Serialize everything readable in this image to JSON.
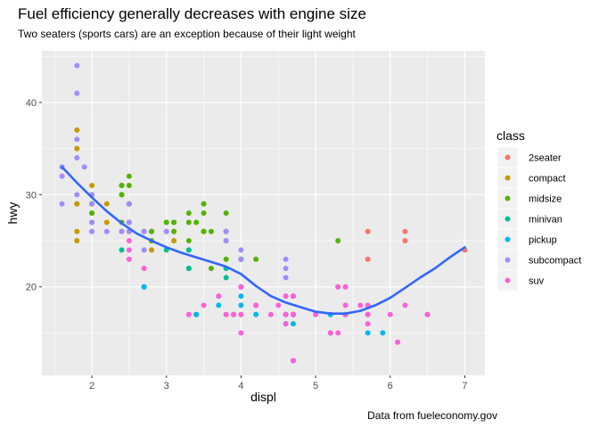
{
  "chart_data": {
    "type": "scatter",
    "title": "Fuel efficiency generally decreases with engine size",
    "subtitle": "Two seaters (sports cars) are an exception because of their light weight",
    "caption": "Data from fueleconomy.gov",
    "xlabel": "displ",
    "ylabel": "hwy",
    "xlim": [
      1.33,
      7.27
    ],
    "ylim": [
      10.4,
      45.6
    ],
    "xticks": [
      2,
      3,
      4,
      5,
      6,
      7
    ],
    "yticks": [
      20,
      30,
      40
    ],
    "grid": true,
    "legend": {
      "title": "class",
      "placement": "right",
      "entries": [
        "2seater",
        "compact",
        "midsize",
        "minivan",
        "pickup",
        "subcompact",
        "suv"
      ]
    },
    "colors": {
      "2seater": "#F8766D",
      "compact": "#C49A00",
      "midsize": "#53B400",
      "minivan": "#00C094",
      "pickup": "#00B6EB",
      "subcompact": "#A58AFF",
      "suv": "#FB61D7",
      "smooth": "#3366FF",
      "panel": "#EBEBEB",
      "grid": "#FFFFFF"
    },
    "series": [
      {
        "name": "2seater",
        "points": [
          [
            5.7,
            26
          ],
          [
            5.7,
            23
          ],
          [
            6.2,
            26
          ],
          [
            6.2,
            25
          ],
          [
            7.0,
            24
          ]
        ]
      },
      {
        "name": "compact",
        "points": [
          [
            1.8,
            29
          ],
          [
            1.8,
            29
          ],
          [
            2.0,
            31
          ],
          [
            2.0,
            30
          ],
          [
            2.8,
            26
          ],
          [
            2.8,
            26
          ],
          [
            3.1,
            27
          ],
          [
            1.8,
            26
          ],
          [
            1.8,
            25
          ],
          [
            2.0,
            28
          ],
          [
            2.0,
            29
          ],
          [
            2.8,
            25
          ],
          [
            3.1,
            25
          ],
          [
            2.2,
            27
          ],
          [
            2.2,
            29
          ],
          [
            2.4,
            31
          ],
          [
            2.4,
            31
          ],
          [
            3.0,
            26
          ],
          [
            1.8,
            35
          ],
          [
            1.8,
            37
          ],
          [
            1.8,
            35
          ],
          [
            2.0,
            29
          ],
          [
            2.0,
            29
          ],
          [
            2.8,
            24
          ],
          [
            2.5,
            26
          ],
          [
            2.5,
            29
          ]
        ]
      },
      {
        "name": "midsize",
        "points": [
          [
            2.8,
            26
          ],
          [
            3.1,
            26
          ],
          [
            4.2,
            23
          ],
          [
            2.4,
            27
          ],
          [
            2.4,
            30
          ],
          [
            3.1,
            26
          ],
          [
            3.5,
            29
          ],
          [
            3.6,
            26
          ],
          [
            3.8,
            26
          ],
          [
            3.8,
            25
          ],
          [
            2.4,
            26
          ],
          [
            2.5,
            27
          ],
          [
            3.3,
            28
          ],
          [
            3.5,
            26
          ],
          [
            2.0,
            28
          ],
          [
            2.0,
            29
          ],
          [
            2.5,
            29
          ],
          [
            2.5,
            32
          ],
          [
            3.0,
            27
          ],
          [
            3.5,
            28
          ],
          [
            3.5,
            29
          ],
          [
            2.5,
            31
          ],
          [
            2.5,
            29
          ],
          [
            3.5,
            26
          ],
          [
            3.5,
            26
          ],
          [
            3.8,
            28
          ],
          [
            3.8,
            26
          ],
          [
            3.8,
            23
          ],
          [
            3.3,
            27
          ],
          [
            2.0,
            30
          ],
          [
            2.0,
            29
          ],
          [
            2.4,
            31
          ],
          [
            3.1,
            27
          ],
          [
            5.3,
            25
          ],
          [
            3.0,
            27
          ],
          [
            2.4,
            30
          ],
          [
            3.5,
            26
          ],
          [
            3.6,
            22
          ],
          [
            4.0,
            23
          ],
          [
            2.7,
            26
          ],
          [
            3.1,
            27
          ],
          [
            3.4,
            27
          ],
          [
            2.8,
            25
          ],
          [
            3.3,
            25
          ]
        ]
      },
      {
        "name": "minivan",
        "points": [
          [
            2.4,
            24
          ],
          [
            3.0,
            24
          ],
          [
            3.3,
            22
          ],
          [
            3.3,
            22
          ],
          [
            3.3,
            24
          ],
          [
            3.8,
            22
          ],
          [
            3.8,
            22
          ],
          [
            3.8,
            21
          ],
          [
            4.0,
            23
          ],
          [
            3.3,
            24
          ],
          [
            3.3,
            22
          ]
        ]
      },
      {
        "name": "pickup",
        "points": [
          [
            3.7,
            19
          ],
          [
            3.7,
            18
          ],
          [
            3.9,
            17
          ],
          [
            3.9,
            17
          ],
          [
            4.7,
            19
          ],
          [
            4.7,
            19
          ],
          [
            4.7,
            12
          ],
          [
            5.2,
            17
          ],
          [
            5.2,
            15
          ],
          [
            5.7,
            17
          ],
          [
            5.9,
            15
          ],
          [
            4.7,
            17
          ],
          [
            4.7,
            16
          ],
          [
            4.7,
            12
          ],
          [
            5.2,
            17
          ],
          [
            5.7,
            15
          ],
          [
            4.0,
            19
          ],
          [
            4.6,
            17
          ],
          [
            5.4,
            17
          ],
          [
            5.4,
            17
          ],
          [
            4.0,
            20
          ],
          [
            4.2,
            17
          ],
          [
            4.6,
            17
          ],
          [
            4.6,
            16
          ],
          [
            2.7,
            20
          ],
          [
            2.7,
            20
          ],
          [
            2.7,
            20
          ],
          [
            3.4,
            17
          ],
          [
            3.4,
            17
          ],
          [
            4.0,
            18
          ],
          [
            4.0,
            20
          ],
          [
            4.7,
            17
          ]
        ]
      },
      {
        "name": "subcompact",
        "points": [
          [
            1.6,
            33
          ],
          [
            1.6,
            32
          ],
          [
            1.6,
            29
          ],
          [
            1.8,
            36
          ],
          [
            1.8,
            34
          ],
          [
            1.8,
            30
          ],
          [
            2.0,
            27
          ],
          [
            2.0,
            26
          ],
          [
            3.8,
            26
          ],
          [
            3.8,
            25
          ],
          [
            4.0,
            23
          ],
          [
            4.0,
            24
          ],
          [
            4.6,
            23
          ],
          [
            4.6,
            22
          ],
          [
            4.6,
            21
          ],
          [
            5.4,
            20
          ],
          [
            1.8,
            44
          ],
          [
            1.8,
            41
          ],
          [
            1.9,
            33
          ],
          [
            2.0,
            30
          ],
          [
            2.0,
            29
          ],
          [
            2.5,
            29
          ],
          [
            2.5,
            26
          ],
          [
            2.2,
            26
          ],
          [
            2.5,
            27
          ],
          [
            2.7,
            24
          ],
          [
            2.7,
            26
          ],
          [
            2.0,
            26
          ],
          [
            2.0,
            27
          ],
          [
            3.0,
            26
          ],
          [
            2.4,
            26
          ]
        ]
      },
      {
        "name": "suv",
        "points": [
          [
            5.3,
            20
          ],
          [
            5.3,
            15
          ],
          [
            5.3,
            20
          ],
          [
            5.7,
            17
          ],
          [
            6.0,
            17
          ],
          [
            5.7,
            17
          ],
          [
            6.5,
            17
          ],
          [
            3.7,
            19
          ],
          [
            3.9,
            17
          ],
          [
            4.7,
            17
          ],
          [
            4.7,
            19
          ],
          [
            5.2,
            15
          ],
          [
            4.0,
            20
          ],
          [
            4.0,
            15
          ],
          [
            4.0,
            17
          ],
          [
            4.6,
            19
          ],
          [
            5.0,
            17
          ],
          [
            4.2,
            18
          ],
          [
            4.4,
            17
          ],
          [
            4.6,
            16
          ],
          [
            5.4,
            17
          ],
          [
            5.4,
            18
          ],
          [
            4.7,
            17
          ],
          [
            4.7,
            19
          ],
          [
            4.7,
            17
          ],
          [
            5.7,
            16
          ],
          [
            6.1,
            14
          ],
          [
            4.0,
            20
          ],
          [
            4.6,
            17
          ],
          [
            5.4,
            20
          ],
          [
            4.7,
            17
          ],
          [
            4.7,
            12
          ],
          [
            2.5,
            24
          ],
          [
            2.5,
            25
          ],
          [
            3.3,
            17
          ],
          [
            3.8,
            17
          ],
          [
            3.5,
            18
          ],
          [
            4.0,
            17
          ],
          [
            5.6,
            18
          ],
          [
            4.2,
            18
          ],
          [
            2.5,
            23
          ],
          [
            2.7,
            22
          ],
          [
            4.5,
            18
          ],
          [
            4.6,
            19
          ],
          [
            5.7,
            18
          ],
          [
            6.2,
            18
          ],
          [
            6.5,
            17
          ]
        ]
      }
    ],
    "smooth": {
      "name": "smooth",
      "points": [
        [
          1.6,
          33.0
        ],
        [
          1.8,
          31.3
        ],
        [
          2.0,
          29.7
        ],
        [
          2.2,
          28.2
        ],
        [
          2.4,
          26.9
        ],
        [
          2.6,
          25.8
        ],
        [
          2.8,
          25.0
        ],
        [
          3.0,
          24.3
        ],
        [
          3.2,
          23.7
        ],
        [
          3.4,
          23.2
        ],
        [
          3.6,
          22.7
        ],
        [
          3.8,
          22.2
        ],
        [
          4.0,
          21.4
        ],
        [
          4.2,
          20.1
        ],
        [
          4.4,
          19.0
        ],
        [
          4.6,
          18.3
        ],
        [
          4.8,
          17.8
        ],
        [
          5.0,
          17.3
        ],
        [
          5.2,
          17.1
        ],
        [
          5.4,
          17.1
        ],
        [
          5.6,
          17.4
        ],
        [
          5.8,
          18.0
        ],
        [
          6.0,
          18.8
        ],
        [
          6.2,
          19.9
        ],
        [
          6.4,
          21.0
        ],
        [
          6.6,
          22.0
        ],
        [
          6.8,
          23.2
        ],
        [
          7.0,
          24.3
        ]
      ]
    }
  }
}
